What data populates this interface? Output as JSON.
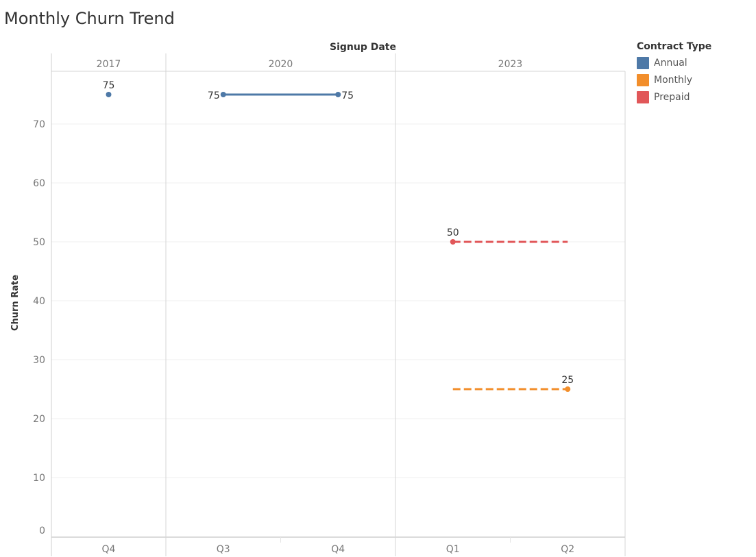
{
  "colors": {
    "Annual": "#4e79a7",
    "Monthly": "#f28e2b",
    "Prepaid": "#e15759"
  },
  "chart_data": {
    "type": "line",
    "title": "Monthly Churn Trend",
    "column_header": "Signup Date",
    "ylabel": "Churn Rate",
    "ylim": [
      0,
      78
    ],
    "yticks": [
      0,
      10,
      20,
      30,
      40,
      50,
      60,
      70
    ],
    "years": [
      {
        "year": "2017",
        "quarters": [
          "Q4"
        ]
      },
      {
        "year": "2020",
        "quarters": [
          "Q3",
          "Q4"
        ]
      },
      {
        "year": "2023",
        "quarters": [
          "Q1",
          "Q2"
        ]
      }
    ],
    "legend": {
      "title": "Contract Type",
      "items": [
        "Annual",
        "Monthly",
        "Prepaid"
      ],
      "position": "right"
    },
    "series": [
      {
        "name": "Annual",
        "style": "solid",
        "points": [
          {
            "year": "2017",
            "quarter": "Q4",
            "value": 75,
            "label": "75",
            "label_pos": "above"
          }
        ]
      },
      {
        "name": "Annual",
        "style": "solid",
        "points": [
          {
            "year": "2020",
            "quarter": "Q3",
            "value": 75,
            "label": "75",
            "label_pos": "left"
          },
          {
            "year": "2020",
            "quarter": "Q4",
            "value": 75,
            "label": "75",
            "label_pos": "right"
          }
        ]
      },
      {
        "name": "Prepaid",
        "style": "dashed",
        "points": [
          {
            "year": "2023",
            "quarter": "Q1",
            "value": 50,
            "label": "50",
            "label_pos": "above",
            "marker": true
          },
          {
            "year": "2023",
            "quarter": "Q2",
            "value": 50,
            "marker": false
          }
        ]
      },
      {
        "name": "Monthly",
        "style": "dashed",
        "points": [
          {
            "year": "2023",
            "quarter": "Q1",
            "value": 25,
            "marker": false
          },
          {
            "year": "2023",
            "quarter": "Q2",
            "value": 25,
            "label": "25",
            "label_pos": "above",
            "marker": true
          }
        ]
      }
    ]
  }
}
